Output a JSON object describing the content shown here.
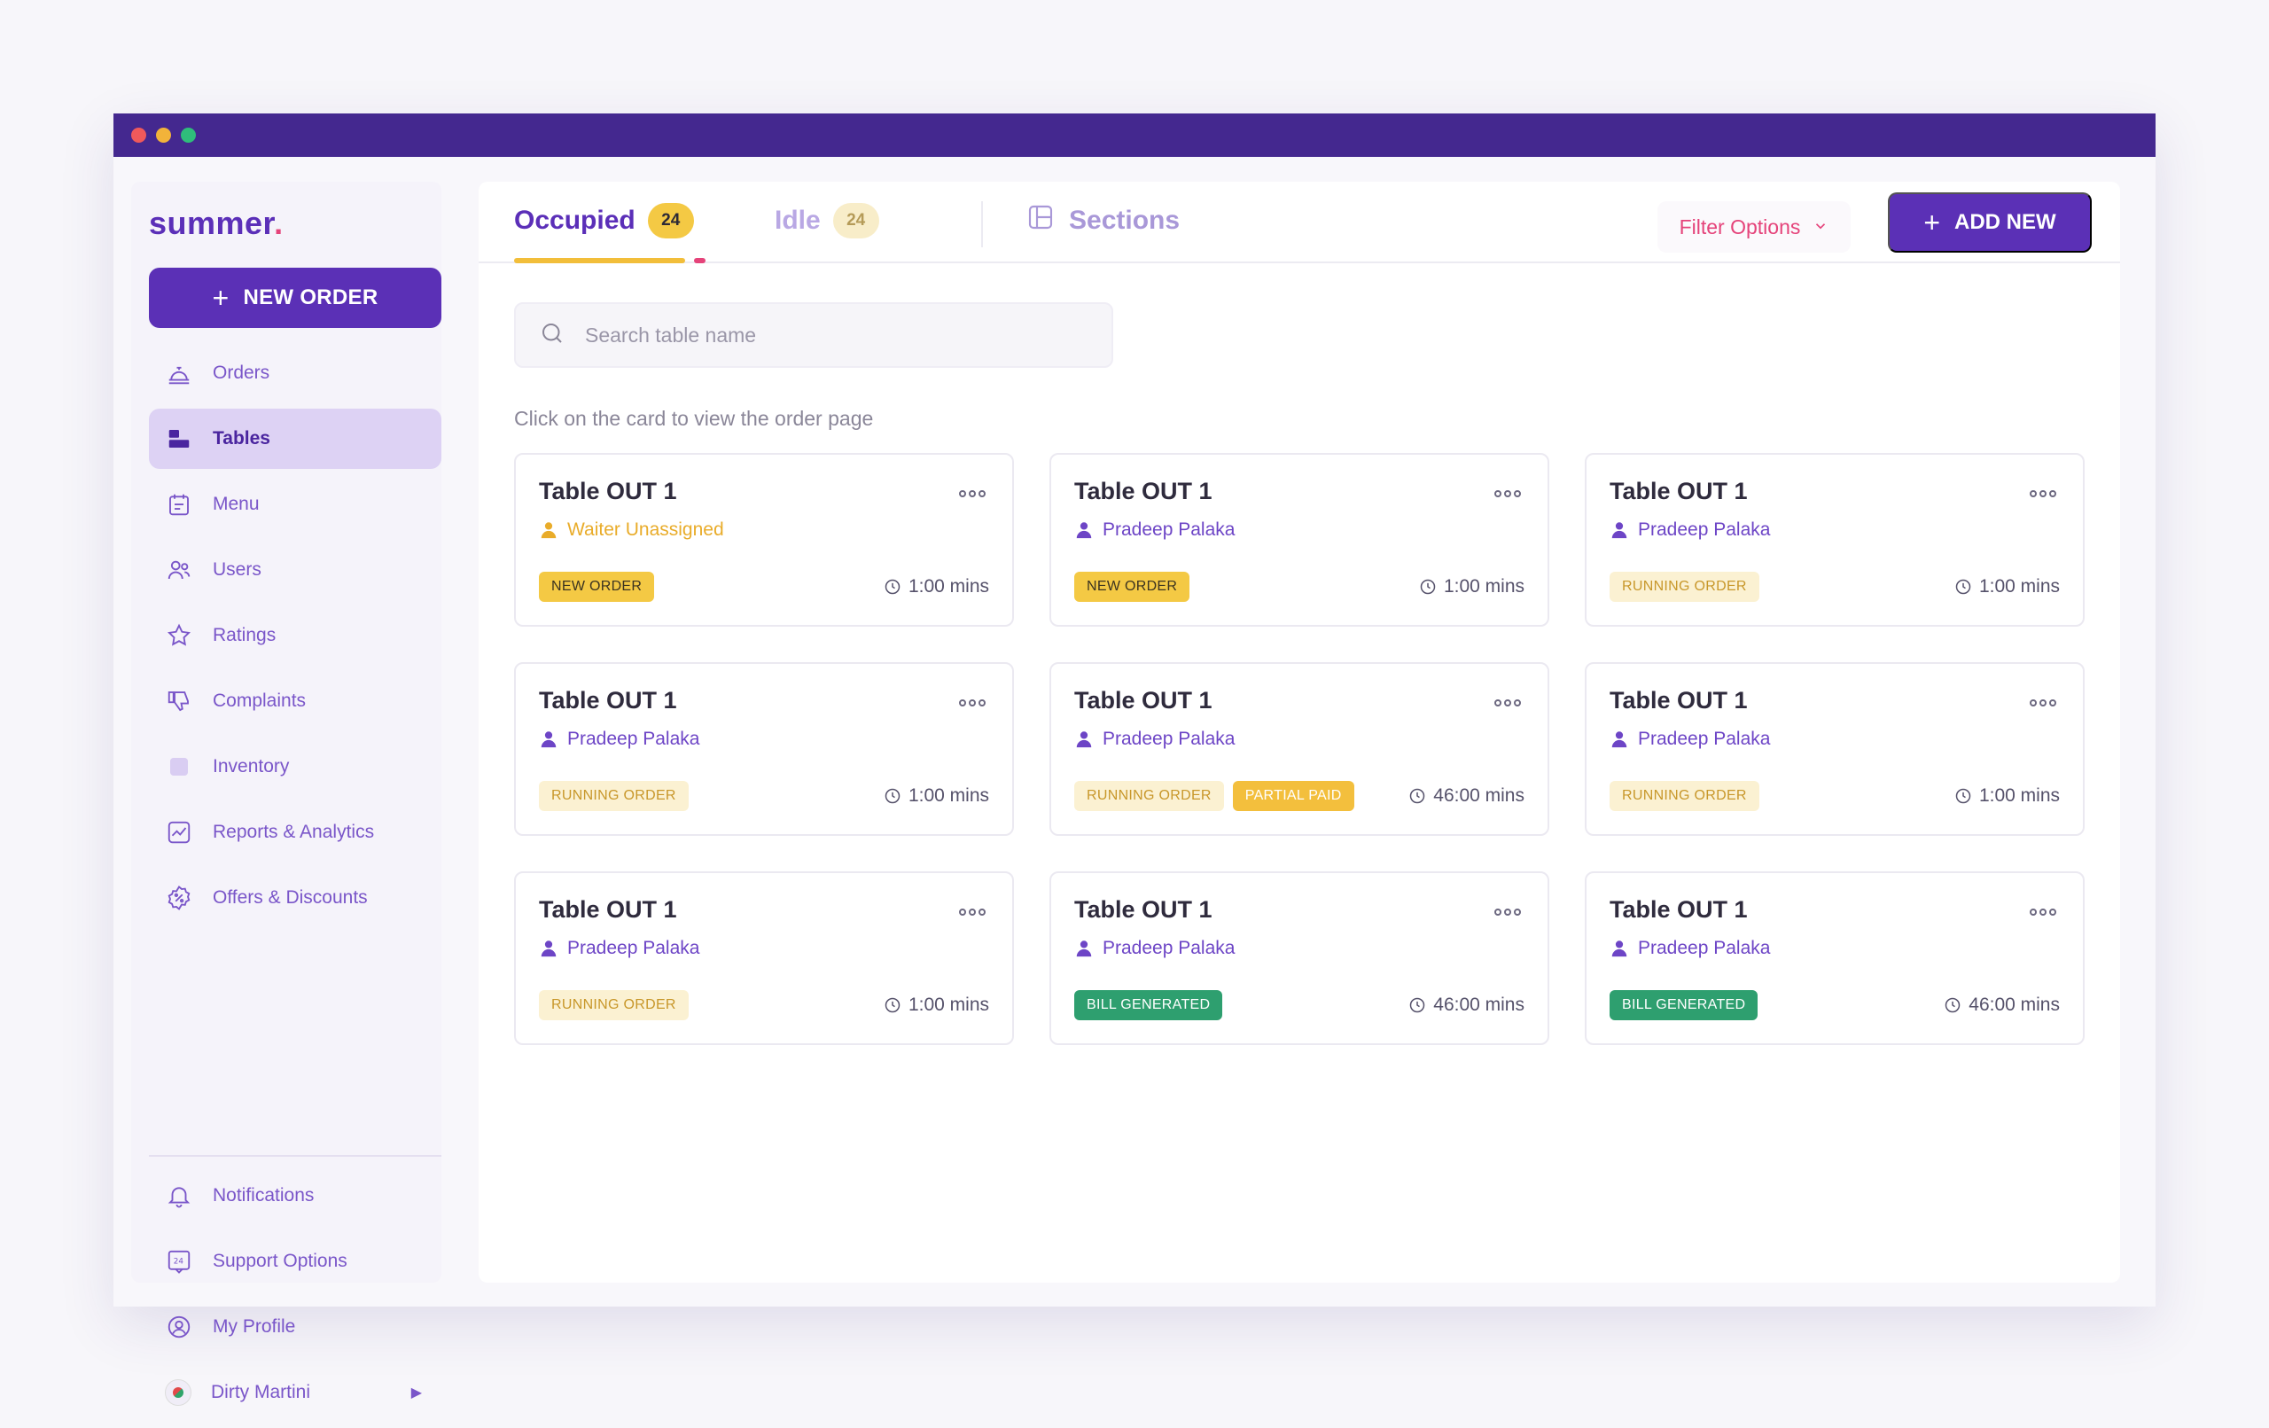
{
  "brand": {
    "logo": "summer",
    "logo_mark": "."
  },
  "sidebar": {
    "new_order_label": "NEW ORDER",
    "items": [
      {
        "label": "Orders",
        "icon": "cloche-icon"
      },
      {
        "label": "Tables",
        "icon": "tables-icon",
        "active": true
      },
      {
        "label": "Menu",
        "icon": "menu-icon"
      },
      {
        "label": "Users",
        "icon": "users-icon"
      },
      {
        "label": "Ratings",
        "icon": "star-icon"
      },
      {
        "label": "Complaints",
        "icon": "thumbs-down-icon"
      },
      {
        "label": "Inventory",
        "icon": "inventory-icon"
      },
      {
        "label": "Reports & Analytics",
        "icon": "chart-icon"
      },
      {
        "label": "Offers & Discounts",
        "icon": "discount-icon"
      }
    ],
    "bottom_items": [
      {
        "label": "Notifications",
        "icon": "bell-icon"
      },
      {
        "label": "Support Options",
        "icon": "support-24-icon"
      },
      {
        "label": "My Profile",
        "icon": "profile-icon"
      },
      {
        "label": "Dirty Martini",
        "icon": "restaurant-avatar-icon"
      }
    ]
  },
  "tabs": {
    "occupied": {
      "label": "Occupied",
      "count": "24"
    },
    "idle": {
      "label": "Idle",
      "count": "24"
    },
    "sections": {
      "label": "Sections"
    }
  },
  "toolbar": {
    "filter_label": "Filter Options",
    "add_new_label": "ADD NEW"
  },
  "search": {
    "placeholder": "Search table name",
    "value": ""
  },
  "hint": "Click on the card to view the order page",
  "colors": {
    "primary": "#5b30b6",
    "accent_pink": "#e5437a",
    "accent_yellow": "#f4c944",
    "success": "#2e9f6f",
    "titlebar": "#44288f"
  },
  "cards": [
    {
      "title": "Table OUT 1",
      "waiter": "Waiter Unassigned",
      "waiter_unassigned": true,
      "badges": [
        {
          "label": "NEW ORDER",
          "kind": "new"
        }
      ],
      "time": "1:00 mins"
    },
    {
      "title": "Table OUT 1",
      "waiter": "Pradeep Palaka",
      "badges": [
        {
          "label": "NEW ORDER",
          "kind": "new"
        }
      ],
      "time": "1:00 mins"
    },
    {
      "title": "Table OUT 1",
      "waiter": "Pradeep Palaka",
      "badges": [
        {
          "label": "RUNNING ORDER",
          "kind": "running"
        }
      ],
      "time": "1:00 mins"
    },
    {
      "title": "Table OUT 1",
      "waiter": "Pradeep Palaka",
      "badges": [
        {
          "label": "RUNNING ORDER",
          "kind": "running"
        }
      ],
      "time": "1:00 mins"
    },
    {
      "title": "Table OUT 1",
      "waiter": "Pradeep Palaka",
      "badges": [
        {
          "label": "RUNNING ORDER",
          "kind": "running"
        },
        {
          "label": "PARTIAL PAID",
          "kind": "partial"
        }
      ],
      "time": "46:00 mins"
    },
    {
      "title": "Table OUT 1",
      "waiter": "Pradeep Palaka",
      "badges": [
        {
          "label": "RUNNING ORDER",
          "kind": "running"
        }
      ],
      "time": "1:00 mins"
    },
    {
      "title": "Table OUT 1",
      "waiter": "Pradeep Palaka",
      "badges": [
        {
          "label": "RUNNING ORDER",
          "kind": "running"
        }
      ],
      "time": "1:00 mins"
    },
    {
      "title": "Table OUT 1",
      "waiter": "Pradeep Palaka",
      "badges": [
        {
          "label": "BILL GENERATED",
          "kind": "bill"
        }
      ],
      "time": "46:00 mins"
    },
    {
      "title": "Table OUT 1",
      "waiter": "Pradeep Palaka",
      "badges": [
        {
          "label": "BILL GENERATED",
          "kind": "bill"
        }
      ],
      "time": "46:00 mins"
    }
  ]
}
